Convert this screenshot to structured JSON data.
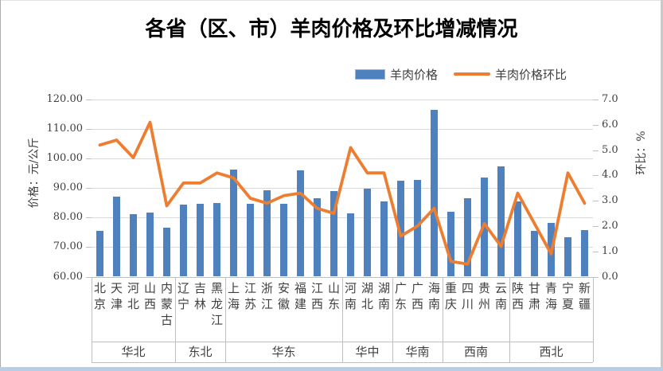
{
  "window": {
    "background": "#ffffff",
    "border_color": "#ababab",
    "bottom_strip_color": "#b9cde4"
  },
  "chart_data": {
    "type": "bar+line",
    "title": "各省（区、市）羊肉价格及环比增减情况",
    "legend_position": "top",
    "grid": true,
    "ylabel_left": "价格：元/公斤",
    "ylabel_right": "环比：%",
    "ylim_left": [
      60,
      120
    ],
    "ylim_right": [
      0,
      7
    ],
    "left_ticks": [
      "60.00",
      "70.00",
      "80.00",
      "90.00",
      "100.00",
      "110.00",
      "120.00"
    ],
    "right_ticks": [
      "0.0",
      "1.0",
      "2.0",
      "3.0",
      "4.0",
      "5.0",
      "6.0",
      "7.0"
    ],
    "categories": [
      "北京",
      "天津",
      "河北",
      "山西",
      "内蒙古",
      "辽宁",
      "吉林",
      "黑龙江",
      "上海",
      "江苏",
      "浙江",
      "安徽",
      "福建",
      "江西",
      "山东",
      "河南",
      "湖北",
      "湖南",
      "广东",
      "广西",
      "海南",
      "重庆",
      "四川",
      "贵州",
      "云南",
      "陕西",
      "甘肃",
      "青海",
      "宁夏",
      "新疆"
    ],
    "category_groups": [
      {
        "label": "华北",
        "count": 5
      },
      {
        "label": "东北",
        "count": 3
      },
      {
        "label": "华东",
        "count": 7
      },
      {
        "label": "华中",
        "count": 3
      },
      {
        "label": "华南",
        "count": 3
      },
      {
        "label": "西南",
        "count": 4
      },
      {
        "label": "西北",
        "count": 5
      }
    ],
    "series": [
      {
        "name": "羊肉价格",
        "type": "bar",
        "axis": "left",
        "color": "#4e81bd",
        "values": [
          75.4,
          87.2,
          81.3,
          81.6,
          76.6,
          84.3,
          84.7,
          85.0,
          96.4,
          84.6,
          89.3,
          84.7,
          95.9,
          86.5,
          89.0,
          81.5,
          89.7,
          85.4,
          92.6,
          92.8,
          116.5,
          81.9,
          86.6,
          93.6,
          97.4,
          85.6,
          75.6,
          78.3,
          73.4,
          75.8
        ]
      },
      {
        "name": "羊肉价格环比",
        "type": "line",
        "axis": "right",
        "color": "#ed7d31",
        "values": [
          5.2,
          5.4,
          4.7,
          6.1,
          2.8,
          3.7,
          3.7,
          4.1,
          3.9,
          3.1,
          2.9,
          3.2,
          3.3,
          2.7,
          2.5,
          5.1,
          4.1,
          4.1,
          1.6,
          2.0,
          2.7,
          0.6,
          0.5,
          2.1,
          1.2,
          3.3,
          2.1,
          0.9,
          4.1,
          2.9
        ]
      }
    ]
  }
}
